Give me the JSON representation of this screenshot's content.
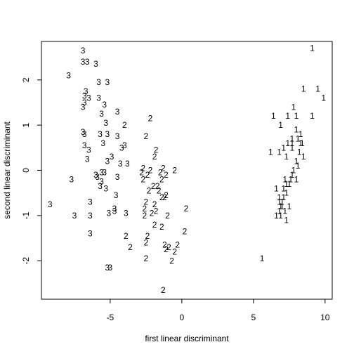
{
  "chart_data": {
    "type": "scatter",
    "title": "",
    "xlabel": "first linear discriminant",
    "ylabel": "second linear discriminant",
    "xlim": [
      -9.8,
      10.5
    ],
    "ylim": [
      -2.85,
      2.85
    ],
    "xticks": [
      -5,
      0,
      5,
      10
    ],
    "xtick_labels": [
      "-5",
      "0",
      "5",
      "10"
    ],
    "yticks": [
      -2,
      -1,
      0,
      1,
      2
    ],
    "yticks_labels": [
      "-2",
      "-1",
      "0",
      "1",
      "2"
    ],
    "grid": false,
    "legend": "none",
    "marker": "class-digit-text",
    "series": [
      {
        "label": "1",
        "points": [
          [
            9.1,
            2.7
          ],
          [
            8.5,
            1.8
          ],
          [
            9.5,
            1.8
          ],
          [
            9.9,
            1.6
          ],
          [
            7.8,
            1.4
          ],
          [
            6.4,
            1.2
          ],
          [
            7.4,
            1.2
          ],
          [
            8.0,
            1.2
          ],
          [
            9.1,
            1.2
          ],
          [
            6.9,
            1.0
          ],
          [
            8.0,
            0.9
          ],
          [
            8.3,
            0.8
          ],
          [
            7.7,
            0.7
          ],
          [
            8.1,
            0.7
          ],
          [
            7.4,
            0.6
          ],
          [
            7.7,
            0.6
          ],
          [
            8.3,
            0.6
          ],
          [
            8.4,
            0.6
          ],
          [
            7.1,
            0.5
          ],
          [
            7.7,
            0.5
          ],
          [
            6.2,
            0.4
          ],
          [
            6.8,
            0.4
          ],
          [
            8.2,
            0.4
          ],
          [
            7.3,
            0.3
          ],
          [
            8.5,
            0.3
          ],
          [
            8.0,
            0.2
          ],
          [
            8.1,
            0.1
          ],
          [
            7.8,
            0.0
          ],
          [
            7.7,
            -0.1
          ],
          [
            7.2,
            -0.2
          ],
          [
            7.6,
            -0.2
          ],
          [
            8.0,
            -0.2
          ],
          [
            7.3,
            -0.3
          ],
          [
            7.5,
            -0.3
          ],
          [
            6.6,
            -0.4
          ],
          [
            7.1,
            -0.4
          ],
          [
            7.3,
            -0.5
          ],
          [
            6.8,
            -0.6
          ],
          [
            7.1,
            -0.6
          ],
          [
            6.8,
            -0.7
          ],
          [
            7.0,
            -0.7
          ],
          [
            6.9,
            -0.8
          ],
          [
            7.0,
            -0.8
          ],
          [
            7.5,
            -0.8
          ],
          [
            6.8,
            -0.9
          ],
          [
            7.2,
            -0.9
          ],
          [
            6.6,
            -1.0
          ],
          [
            6.9,
            -1.0
          ],
          [
            7.3,
            -1.1
          ],
          [
            5.6,
            -1.95
          ]
        ]
      },
      {
        "label": "2",
        "points": [
          [
            -2.2,
            1.15
          ],
          [
            -4.0,
            1.0
          ],
          [
            -2.5,
            0.75
          ],
          [
            -1.8,
            0.45
          ],
          [
            -1.9,
            0.3
          ],
          [
            -2.7,
            0.05
          ],
          [
            -2.2,
            0.0
          ],
          [
            -1.3,
            0.05
          ],
          [
            -0.5,
            0.0
          ],
          [
            -2.8,
            -0.05
          ],
          [
            -1.5,
            -0.05
          ],
          [
            -2.4,
            -0.1
          ],
          [
            -1.1,
            -0.1
          ],
          [
            -2.7,
            -0.2
          ],
          [
            -1.4,
            -0.2
          ],
          [
            -2.0,
            -0.35
          ],
          [
            -1.7,
            -0.35
          ],
          [
            -2.3,
            -0.45
          ],
          [
            -1.6,
            -0.45
          ],
          [
            -1.1,
            -0.55
          ],
          [
            -1.4,
            -0.6
          ],
          [
            -1.2,
            -0.6
          ],
          [
            -2.5,
            -0.7
          ],
          [
            -1.9,
            -0.75
          ],
          [
            -2.6,
            -0.85
          ],
          [
            0.3,
            -0.85
          ],
          [
            -1.8,
            -0.9
          ],
          [
            -2.1,
            -0.95
          ],
          [
            -2.6,
            -1.0
          ],
          [
            -1.0,
            -1.0
          ],
          [
            -1.9,
            -1.2
          ],
          [
            -1.4,
            -1.25
          ],
          [
            0.2,
            -1.35
          ],
          [
            -3.9,
            -1.45
          ],
          [
            -2.4,
            -1.45
          ],
          [
            -2.5,
            -1.6
          ],
          [
            -1.2,
            -1.65
          ],
          [
            -0.3,
            -1.65
          ],
          [
            -3.6,
            -1.7
          ],
          [
            -0.9,
            -1.7
          ],
          [
            -1.1,
            -1.75
          ],
          [
            -0.5,
            -1.8
          ],
          [
            -0.7,
            -2.0
          ],
          [
            -2.5,
            -1.95
          ],
          [
            -1.3,
            -2.65
          ]
        ]
      },
      {
        "label": "3",
        "points": [
          [
            -6.9,
            2.65
          ],
          [
            -6.9,
            2.4
          ],
          [
            -6.6,
            2.4
          ],
          [
            -6.0,
            2.35
          ],
          [
            -7.9,
            2.1
          ],
          [
            -5.8,
            1.95
          ],
          [
            -5.2,
            1.95
          ],
          [
            -6.7,
            1.75
          ],
          [
            -6.8,
            1.65
          ],
          [
            -6.5,
            1.6
          ],
          [
            -5.8,
            1.6
          ],
          [
            -6.8,
            1.5
          ],
          [
            -6.9,
            1.4
          ],
          [
            -5.4,
            1.45
          ],
          [
            -4.5,
            1.3
          ],
          [
            -5.6,
            1.25
          ],
          [
            -5.3,
            1.05
          ],
          [
            -6.9,
            0.85
          ],
          [
            -6.8,
            0.8
          ],
          [
            -5.7,
            0.8
          ],
          [
            -5.2,
            0.8
          ],
          [
            -4.5,
            0.75
          ],
          [
            -5.5,
            0.6
          ],
          [
            -4.0,
            0.55
          ],
          [
            -6.8,
            0.55
          ],
          [
            -4.2,
            0.5
          ],
          [
            -6.5,
            0.45
          ],
          [
            -4.9,
            0.3
          ],
          [
            -6.6,
            0.25
          ],
          [
            -5.2,
            0.2
          ],
          [
            -4.3,
            0.15
          ],
          [
            -3.8,
            0.15
          ],
          [
            -6.0,
            -0.1
          ],
          [
            -5.6,
            -0.05
          ],
          [
            -5.4,
            -0.05
          ],
          [
            -4.5,
            -0.15
          ],
          [
            -5.9,
            -0.15
          ],
          [
            -7.7,
            -0.2
          ],
          [
            -5.6,
            -0.25
          ],
          [
            -5.7,
            -0.35
          ],
          [
            -5.3,
            -0.4
          ],
          [
            -4.6,
            -0.55
          ],
          [
            -6.4,
            -0.7
          ],
          [
            -9.2,
            -0.75
          ],
          [
            -4.7,
            -0.85
          ],
          [
            -4.7,
            -0.9
          ],
          [
            -3.9,
            -0.95
          ],
          [
            -7.5,
            -1.0
          ],
          [
            -6.4,
            -1.0
          ],
          [
            -5.1,
            -0.95
          ],
          [
            -6.4,
            -1.4
          ],
          [
            -5.2,
            -2.15
          ],
          [
            -5.0,
            -2.15
          ]
        ]
      }
    ]
  }
}
